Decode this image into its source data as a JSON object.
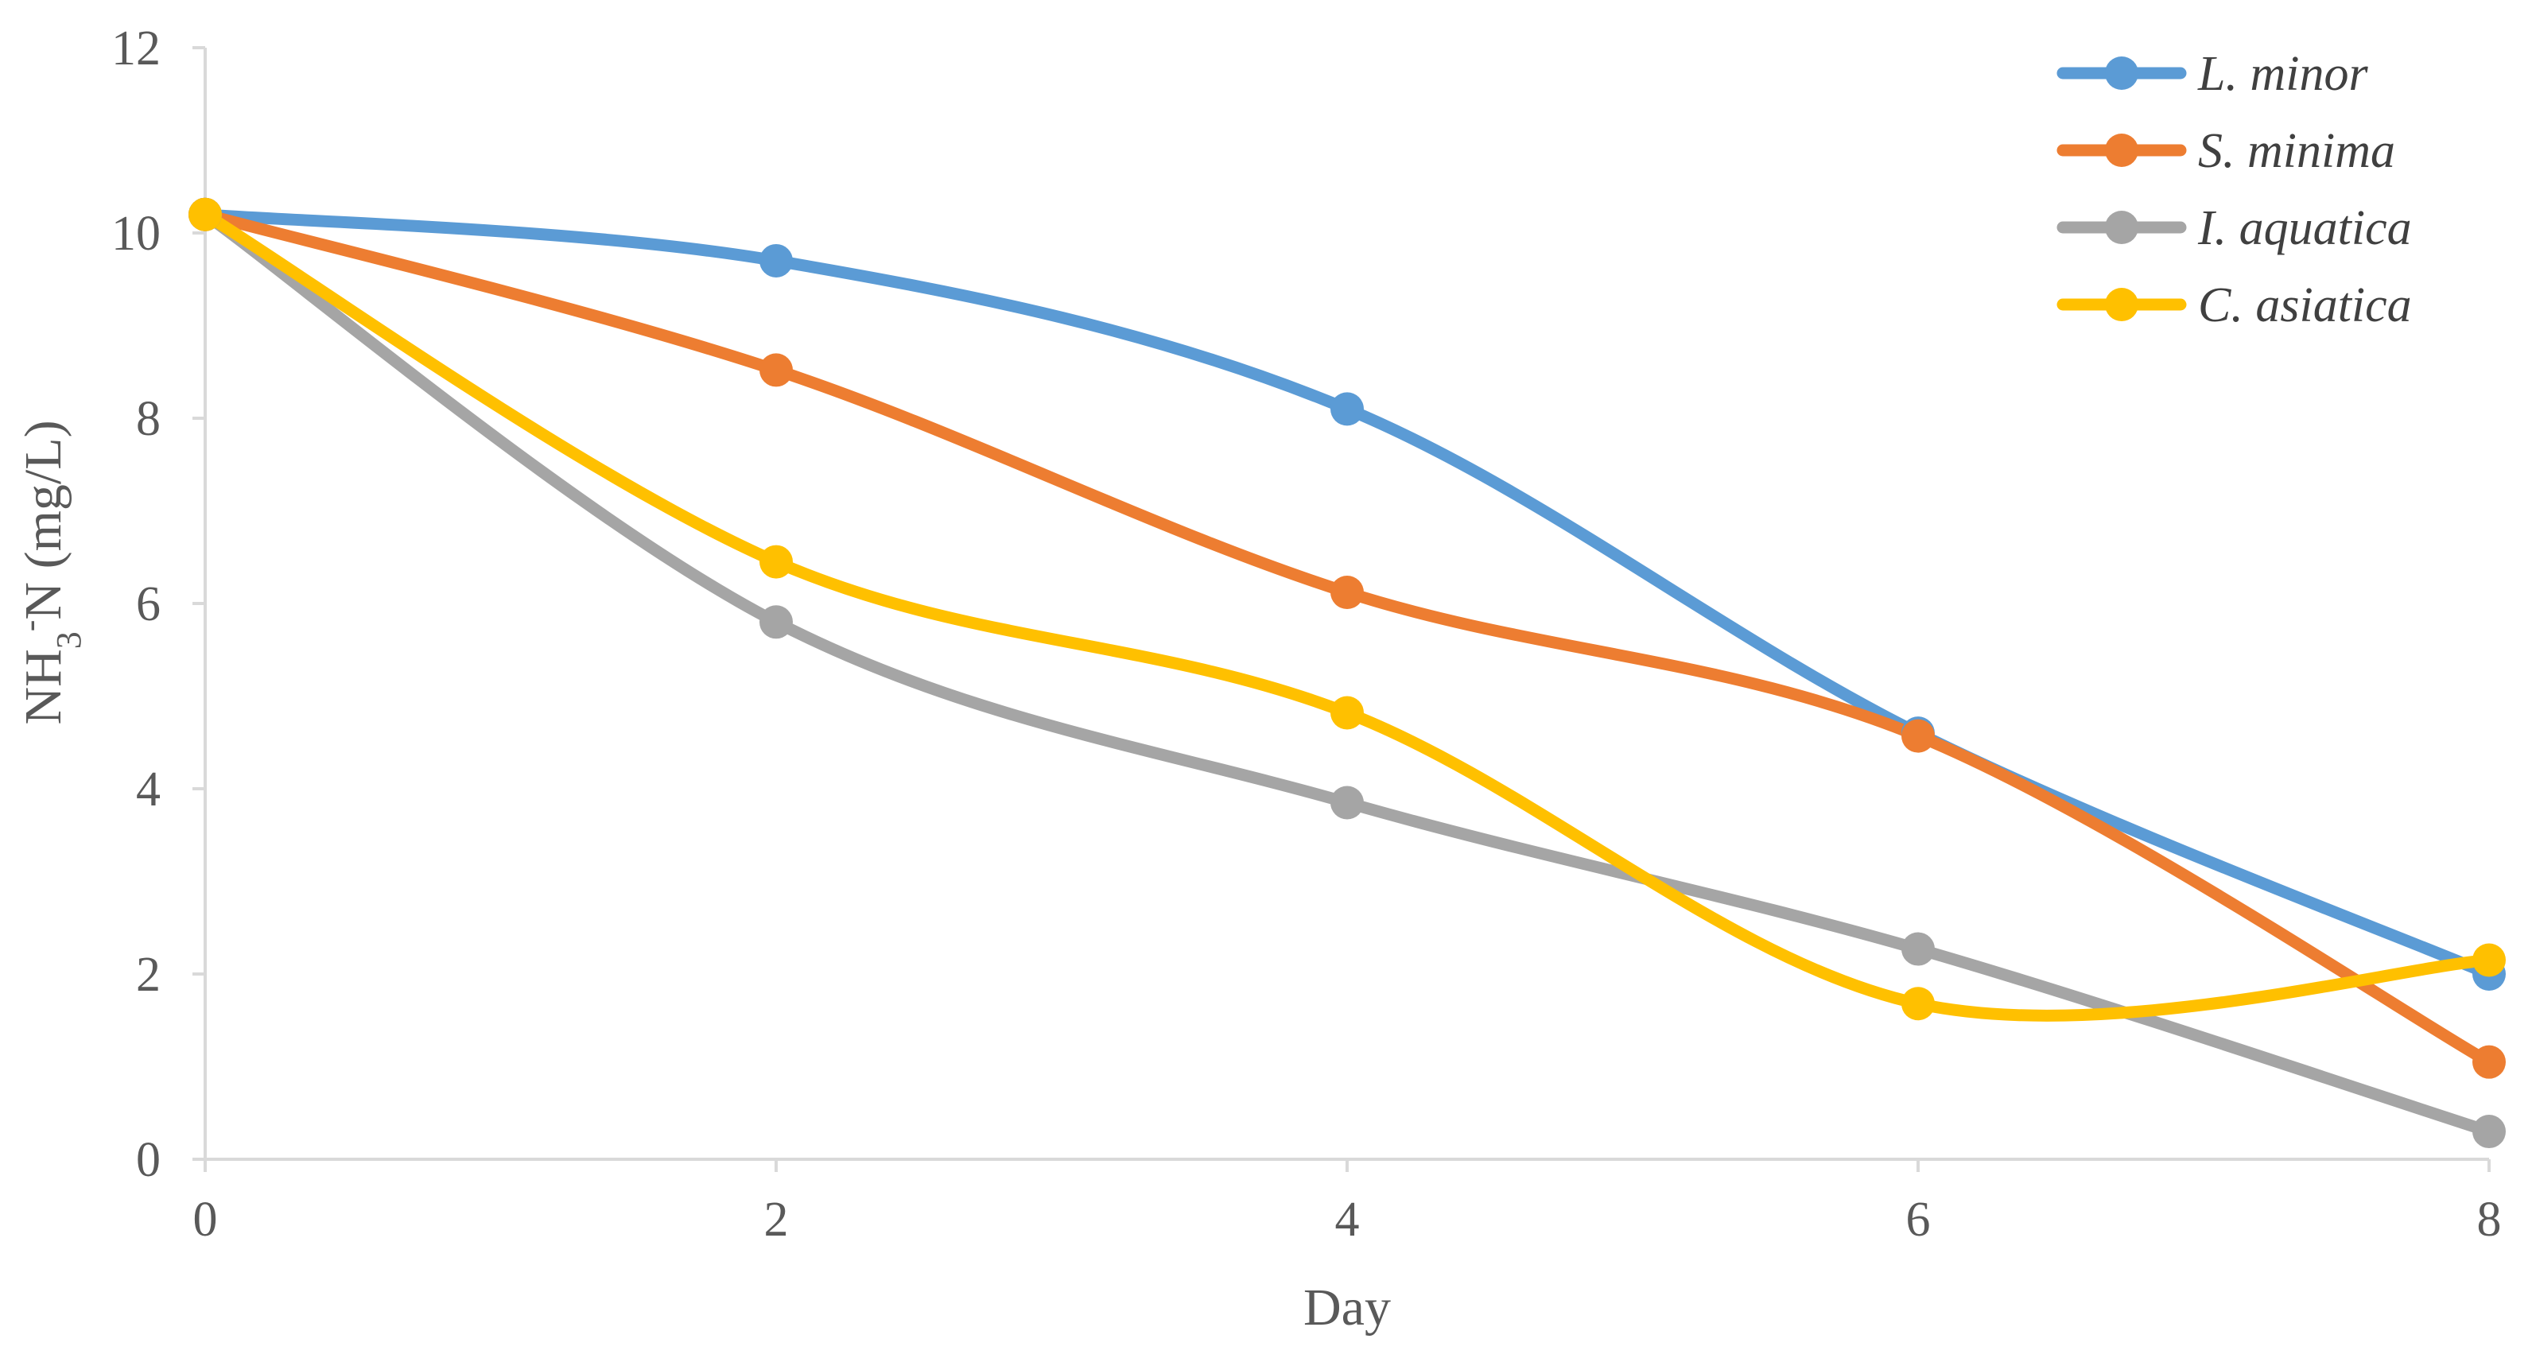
{
  "chart_data": {
    "type": "line",
    "smoothed": true,
    "xlabel": "Day",
    "ylabel": {
      "main": "NH",
      "subscript": "3",
      "superscript": "-",
      "rest": "N (mg/L)"
    },
    "x": [
      0,
      2,
      4,
      6,
      8
    ],
    "xlim": [
      0,
      8
    ],
    "ylim": [
      0,
      12
    ],
    "xticks": [
      "0",
      "2",
      "4",
      "6",
      "8"
    ],
    "yticks": [
      "0",
      "2",
      "4",
      "6",
      "8",
      "10",
      "12"
    ],
    "grid": false,
    "legend_position": "top-right",
    "series": [
      {
        "name": "L. minor",
        "color": "#5B9BD5",
        "values": [
          10.2,
          9.7,
          8.1,
          4.6,
          2.0
        ]
      },
      {
        "name": "S. minima",
        "color": "#ED7D31",
        "values": [
          10.2,
          8.52,
          6.12,
          4.57,
          1.05
        ]
      },
      {
        "name": "I. aquatica",
        "color": "#A5A5A5",
        "values": [
          10.2,
          5.8,
          3.85,
          2.27,
          0.3
        ]
      },
      {
        "name": "C. asiatica",
        "color": "#FFC000",
        "values": [
          10.2,
          6.45,
          4.82,
          1.68,
          2.15
        ]
      }
    ]
  }
}
